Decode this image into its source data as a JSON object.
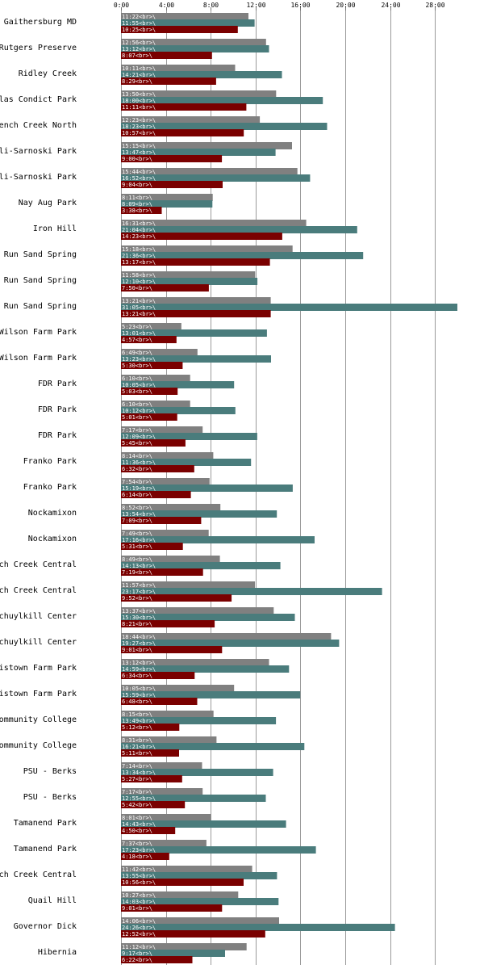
{
  "chart_data": {
    "type": "bar",
    "orientation": "horizontal",
    "xlim": [
      0,
      1800
    ],
    "x_ticks": [
      {
        "value": 0,
        "label": "0:00"
      },
      {
        "value": 240,
        "label": "4:00"
      },
      {
        "value": 480,
        "label": "8:00"
      },
      {
        "value": 720,
        "label": "12:00"
      },
      {
        "value": 960,
        "label": "16:00"
      },
      {
        "value": 1200,
        "label": "20:00"
      },
      {
        "value": 1440,
        "label": "24:00"
      },
      {
        "value": 1680,
        "label": "28:00"
      }
    ],
    "grid": true,
    "series_colors": [
      "#808080",
      "#4a7c7c",
      "#7a0000"
    ],
    "categories": [
      {
        "label": "Gaithersburg MD",
        "bars": [
          {
            "value": 682,
            "text": "11:22<br>\\"
          },
          {
            "value": 715,
            "text": "11:55<br>\\"
          },
          {
            "value": 625,
            "text": "10:25<br>\\"
          }
        ]
      },
      {
        "label": "Rutgers Preserve",
        "bars": [
          {
            "value": 776,
            "text": "12:56<br>\\"
          },
          {
            "value": 792,
            "text": "13:12<br>\\"
          },
          {
            "value": 487,
            "text": "8:07<br>\\"
          }
        ]
      },
      {
        "label": "Ridley Creek",
        "bars": [
          {
            "value": 611,
            "text": "10:11<br>\\"
          },
          {
            "value": 861,
            "text": "14:21<br>\\"
          },
          {
            "value": 509,
            "text": "8:29<br>\\"
          }
        ]
      },
      {
        "label": "las Condict Park",
        "bars": [
          {
            "value": 830,
            "text": "13:50<br>\\"
          },
          {
            "value": 1080,
            "text": "18:00<br>\\"
          },
          {
            "value": 671,
            "text": "11:11<br>\\"
          }
        ]
      },
      {
        "label": "ench Creek North",
        "bars": [
          {
            "value": 743,
            "text": "12:23<br>\\"
          },
          {
            "value": 1103,
            "text": "18:23<br>\\"
          },
          {
            "value": 657,
            "text": "10:57<br>\\"
          }
        ]
      },
      {
        "label": "li-Sarnoski Park",
        "bars": [
          {
            "value": 915,
            "text": "15:15<br>\\"
          },
          {
            "value": 827,
            "text": "13:47<br>\\"
          },
          {
            "value": 540,
            "text": "9:00<br>\\"
          }
        ]
      },
      {
        "label": "li-Sarnoski Park",
        "bars": [
          {
            "value": 944,
            "text": "15:44<br>\\"
          },
          {
            "value": 1012,
            "text": "16:52<br>\\"
          },
          {
            "value": 544,
            "text": "9:04<br>\\"
          }
        ]
      },
      {
        "label": "Nay Aug Park",
        "bars": [
          {
            "value": 491,
            "text": "8:11<br>\\"
          },
          {
            "value": 489,
            "text": "8:09<br>\\"
          },
          {
            "value": 218,
            "text": "3:38<br>\\"
          }
        ]
      },
      {
        "label": "Iron Hill",
        "bars": [
          {
            "value": 991,
            "text": "16:31<br>\\"
          },
          {
            "value": 1264,
            "text": "21:04<br>\\"
          },
          {
            "value": 863,
            "text": "14:23<br>\\"
          }
        ]
      },
      {
        "label": "Run Sand Spring",
        "bars": [
          {
            "value": 918,
            "text": "15:18<br>\\"
          },
          {
            "value": 1296,
            "text": "21:36<br>\\"
          },
          {
            "value": 797,
            "text": "13:17<br>\\"
          }
        ]
      },
      {
        "label": "Run Sand Spring",
        "bars": [
          {
            "value": 718,
            "text": "11:58<br>\\"
          },
          {
            "value": 730,
            "text": "12:10<br>\\"
          },
          {
            "value": 470,
            "text": "7:50<br>\\"
          }
        ]
      },
      {
        "label": "Run Sand Spring",
        "bars": [
          {
            "value": 801,
            "text": "13:21<br>\\"
          },
          {
            "value": 1865,
            "text": "31:05<br>\\"
          },
          {
            "value": 801,
            "text": "13:21<br>\\"
          }
        ]
      },
      {
        "label": "Wilson Farm Park",
        "bars": [
          {
            "value": 323,
            "text": "5:23<br>\\"
          },
          {
            "value": 781,
            "text": "13:01<br>\\"
          },
          {
            "value": 297,
            "text": "4:57<br>\\"
          }
        ]
      },
      {
        "label": "Wilson Farm Park",
        "bars": [
          {
            "value": 409,
            "text": "6:49<br>\\"
          },
          {
            "value": 803,
            "text": "13:23<br>\\"
          },
          {
            "value": 330,
            "text": "5:30<br>\\"
          }
        ]
      },
      {
        "label": "FDR Park",
        "bars": [
          {
            "value": 370,
            "text": "6:10<br>\\"
          },
          {
            "value": 605,
            "text": "10:05<br>\\"
          },
          {
            "value": 303,
            "text": "5:03<br>\\"
          }
        ]
      },
      {
        "label": "FDR Park",
        "bars": [
          {
            "value": 370,
            "text": "6:10<br>\\"
          },
          {
            "value": 612,
            "text": "10:12<br>\\"
          },
          {
            "value": 301,
            "text": "5:01<br>\\"
          }
        ]
      },
      {
        "label": "FDR Park",
        "bars": [
          {
            "value": 437,
            "text": "7:17<br>\\"
          },
          {
            "value": 729,
            "text": "12:09<br>\\"
          },
          {
            "value": 345,
            "text": "5:45<br>\\"
          }
        ]
      },
      {
        "label": "Franko Park",
        "bars": [
          {
            "value": 494,
            "text": "8:14<br>\\"
          },
          {
            "value": 696,
            "text": "11:36<br>\\"
          },
          {
            "value": 392,
            "text": "6:32<br>\\"
          }
        ]
      },
      {
        "label": "Franko Park",
        "bars": [
          {
            "value": 474,
            "text": "7:54<br>\\"
          },
          {
            "value": 919,
            "text": "15:19<br>\\"
          },
          {
            "value": 374,
            "text": "6:14<br>\\"
          }
        ]
      },
      {
        "label": "Nockamixon",
        "bars": [
          {
            "value": 532,
            "text": "8:52<br>\\"
          },
          {
            "value": 834,
            "text": "13:54<br>\\"
          },
          {
            "value": 429,
            "text": "7:09<br>\\"
          }
        ]
      },
      {
        "label": "Nockamixon",
        "bars": [
          {
            "value": 469,
            "text": "7:49<br>\\"
          },
          {
            "value": 1036,
            "text": "17:16<br>\\"
          },
          {
            "value": 331,
            "text": "5:31<br>\\"
          }
        ]
      },
      {
        "label": "ch Creek Central",
        "bars": [
          {
            "value": 529,
            "text": "8:49<br>\\"
          },
          {
            "value": 853,
            "text": "14:13<br>\\"
          },
          {
            "value": 439,
            "text": "7:19<br>\\"
          }
        ]
      },
      {
        "label": "ch Creek Central",
        "bars": [
          {
            "value": 717,
            "text": "11:57<br>\\"
          },
          {
            "value": 1397,
            "text": "23:17<br>\\"
          },
          {
            "value": 592,
            "text": "9:52<br>\\"
          }
        ]
      },
      {
        "label": "chuylkill Center",
        "bars": [
          {
            "value": 817,
            "text": "13:37<br>\\"
          },
          {
            "value": 930,
            "text": "15:30<br>\\"
          },
          {
            "value": 501,
            "text": "8:21<br>\\"
          }
        ]
      },
      {
        "label": "chuylkill Center",
        "bars": [
          {
            "value": 1124,
            "text": "18:44<br>\\"
          },
          {
            "value": 1167,
            "text": "19:27<br>\\"
          },
          {
            "value": 541,
            "text": "9:01<br>\\"
          }
        ]
      },
      {
        "label": "istown Farm Park",
        "bars": [
          {
            "value": 792,
            "text": "13:12<br>\\"
          },
          {
            "value": 899,
            "text": "14:59<br>\\"
          },
          {
            "value": 394,
            "text": "6:34<br>\\"
          }
        ]
      },
      {
        "label": "istown Farm Park",
        "bars": [
          {
            "value": 605,
            "text": "10:05<br>\\"
          },
          {
            "value": 959,
            "text": "15:59<br>\\"
          },
          {
            "value": 408,
            "text": "6:48<br>\\"
          }
        ]
      },
      {
        "label": "ommunity College",
        "bars": [
          {
            "value": 495,
            "text": "8:15<br>\\"
          },
          {
            "value": 829,
            "text": "13:49<br>\\"
          },
          {
            "value": 312,
            "text": "5:12<br>\\"
          }
        ]
      },
      {
        "label": "ommunity College",
        "bars": [
          {
            "value": 511,
            "text": "8:31<br>\\"
          },
          {
            "value": 981,
            "text": "16:21<br>\\"
          },
          {
            "value": 311,
            "text": "5:11<br>\\"
          }
        ]
      },
      {
        "label": "PSU - Berks",
        "bars": [
          {
            "value": 434,
            "text": "7:14<br>\\"
          },
          {
            "value": 814,
            "text": "13:34<br>\\"
          },
          {
            "value": 327,
            "text": "5:27<br>\\"
          }
        ]
      },
      {
        "label": "PSU - Berks",
        "bars": [
          {
            "value": 437,
            "text": "7:17<br>\\"
          },
          {
            "value": 775,
            "text": "12:55<br>\\"
          },
          {
            "value": 342,
            "text": "5:42<br>\\"
          }
        ]
      },
      {
        "label": "Tamanend Park",
        "bars": [
          {
            "value": 481,
            "text": "8:01<br>\\"
          },
          {
            "value": 883,
            "text": "14:43<br>\\"
          },
          {
            "value": 290,
            "text": "4:50<br>\\"
          }
        ]
      },
      {
        "label": "Tamanend Park",
        "bars": [
          {
            "value": 457,
            "text": "7:37<br>\\"
          },
          {
            "value": 1043,
            "text": "17:23<br>\\"
          },
          {
            "value": 258,
            "text": "4:18<br>\\"
          }
        ]
      },
      {
        "label": "ch Creek Central",
        "bars": [
          {
            "value": 702,
            "text": "11:42<br>\\"
          },
          {
            "value": 835,
            "text": "13:55<br>\\"
          },
          {
            "value": 656,
            "text": "10:56<br>\\"
          }
        ]
      },
      {
        "label": "Quail Hill",
        "bars": [
          {
            "value": 627,
            "text": "10:27<br>\\"
          },
          {
            "value": 843,
            "text": "14:03<br>\\"
          },
          {
            "value": 541,
            "text": "9:01<br>\\"
          }
        ]
      },
      {
        "label": "Governor Dick",
        "bars": [
          {
            "value": 846,
            "text": "14:06<br>\\"
          },
          {
            "value": 1466,
            "text": "24:26<br>\\"
          },
          {
            "value": 772,
            "text": "12:52<br>\\"
          }
        ]
      },
      {
        "label": "Hibernia",
        "bars": [
          {
            "value": 672,
            "text": "11:12<br>\\"
          },
          {
            "value": 557,
            "text": "9:17<br>\\"
          },
          {
            "value": 382,
            "text": "6:22<br>\\"
          }
        ]
      }
    ]
  }
}
